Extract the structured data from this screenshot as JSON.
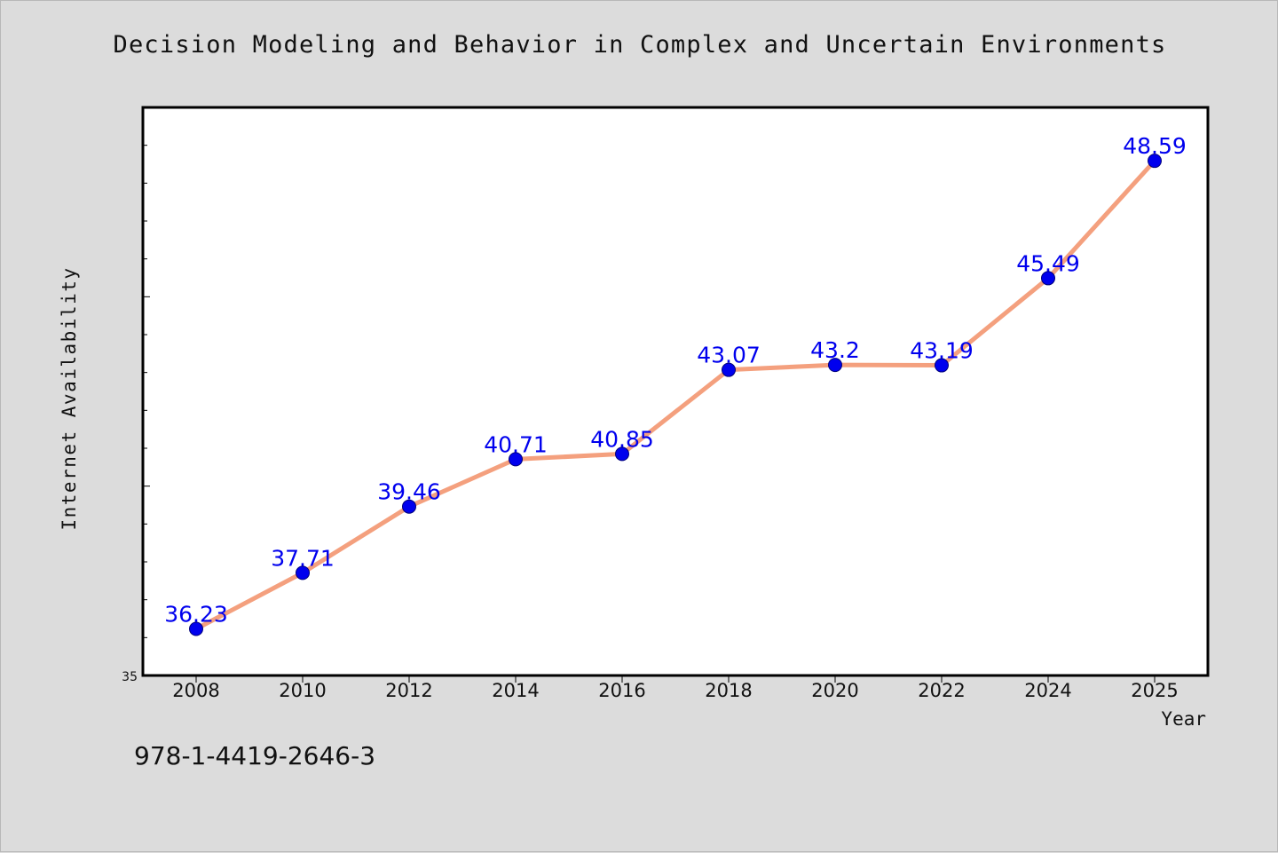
{
  "chart_data": {
    "type": "line",
    "title": "Decision Modeling and Behavior in Complex and Uncertain Environments",
    "xlabel": "Year",
    "ylabel": "Internet Availability",
    "categories": [
      "2008",
      "2010",
      "2012",
      "2014",
      "2016",
      "2018",
      "2020",
      "2022",
      "2024",
      "2025"
    ],
    "series": [
      {
        "values": [
          36.23,
          37.71,
          39.46,
          40.71,
          40.85,
          43.07,
          43.2,
          43.19,
          45.49,
          48.59
        ],
        "labels": [
          "36.23",
          "37.71",
          "39.46",
          "40.71",
          "40.85",
          "43.07",
          "43.2",
          "43.19",
          "45.49",
          "48.59"
        ]
      }
    ],
    "ylim": [
      35,
      50
    ],
    "y_tick_labels": [
      "35"
    ],
    "grid": false,
    "line_color": "#f4a07e",
    "marker_color": "#0000ee",
    "label_color": "#0000ee"
  },
  "footer": {
    "isbn": "978-1-4419-2646-3"
  }
}
